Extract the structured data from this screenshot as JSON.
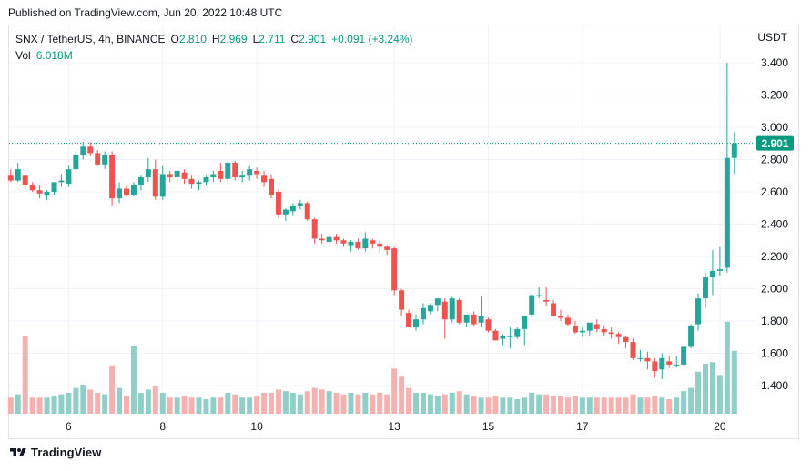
{
  "header": {
    "published": "Published on TradingView.com, Jun 20, 2022 10:48 UTC"
  },
  "legend": {
    "symbol": "SNX / TetherUS, 4h, BINANCE",
    "o_label": "O",
    "o_value": "2.810",
    "h_label": "H",
    "h_value": "2.969",
    "l_label": "L",
    "l_value": "2.711",
    "c_label": "C",
    "c_value": "2.901",
    "change": "+0.091 (+3.24%)",
    "vol_label": "Vol",
    "vol_value": "6.018M"
  },
  "axis": {
    "currency": "USDT"
  },
  "colors": {
    "up": "#26a69a",
    "down": "#ef5350",
    "up_vol": "#8fcfc8",
    "down_vol": "#f5b1af",
    "grid": "#f0f3fa",
    "accent": "#089981"
  },
  "footer": {
    "brand": "TradingView"
  },
  "chart_data": {
    "type": "candlestick",
    "title": "SNX / TetherUS, 4h, BINANCE",
    "ylabel": "USDT",
    "ylim": [
      1.24,
      3.53
    ],
    "y_ticks": [
      "3.400",
      "3.200",
      "3.000",
      "2.800",
      "2.600",
      "2.400",
      "2.200",
      "2.000",
      "1.800",
      "1.600",
      "1.400"
    ],
    "x_ticks": [
      "6",
      "8",
      "10",
      "13",
      "15",
      "17",
      "20"
    ],
    "x_tick_bar_index": [
      8,
      21,
      34,
      53,
      66,
      79,
      98
    ],
    "last_price_label": "2.901",
    "last_price": 2.901,
    "volume_max": 6.2,
    "candles": [
      [
        2.7,
        2.74,
        2.66,
        2.67,
        1.0
      ],
      [
        2.67,
        2.78,
        2.66,
        2.74,
        1.2
      ],
      [
        2.7,
        2.72,
        2.62,
        2.64,
        4.8
      ],
      [
        2.64,
        2.66,
        2.6,
        2.61,
        1.0
      ],
      [
        2.61,
        2.64,
        2.56,
        2.59,
        1.0
      ],
      [
        2.58,
        2.61,
        2.55,
        2.6,
        1.0
      ],
      [
        2.6,
        2.66,
        2.58,
        2.66,
        1.1
      ],
      [
        2.66,
        2.71,
        2.63,
        2.67,
        1.2
      ],
      [
        2.65,
        2.76,
        2.63,
        2.74,
        1.3
      ],
      [
        2.74,
        2.85,
        2.72,
        2.83,
        1.6
      ],
      [
        2.83,
        2.91,
        2.8,
        2.88,
        1.8
      ],
      [
        2.88,
        2.91,
        2.82,
        2.84,
        1.5
      ],
      [
        2.84,
        2.86,
        2.76,
        2.77,
        1.3
      ],
      [
        2.77,
        2.85,
        2.74,
        2.83,
        1.2
      ],
      [
        2.83,
        2.85,
        2.51,
        2.56,
        3.0
      ],
      [
        2.56,
        2.66,
        2.53,
        2.62,
        1.6
      ],
      [
        2.62,
        2.64,
        2.57,
        2.58,
        1.1
      ],
      [
        2.58,
        2.66,
        2.57,
        2.64,
        4.2
      ],
      [
        2.64,
        2.7,
        2.61,
        2.69,
        1.3
      ],
      [
        2.69,
        2.81,
        2.66,
        2.74,
        1.5
      ],
      [
        2.74,
        2.8,
        2.55,
        2.57,
        1.7
      ],
      [
        2.57,
        2.76,
        2.55,
        2.71,
        1.3
      ],
      [
        2.71,
        2.73,
        2.66,
        2.69,
        1.0
      ],
      [
        2.69,
        2.74,
        2.66,
        2.73,
        1.0
      ],
      [
        2.72,
        2.74,
        2.65,
        2.68,
        1.1
      ],
      [
        2.68,
        2.7,
        2.62,
        2.65,
        1.0
      ],
      [
        2.65,
        2.67,
        2.61,
        2.66,
        1.0
      ],
      [
        2.66,
        2.7,
        2.64,
        2.69,
        0.9
      ],
      [
        2.69,
        2.73,
        2.66,
        2.71,
        1.0
      ],
      [
        2.73,
        2.78,
        2.66,
        2.68,
        1.0
      ],
      [
        2.68,
        2.79,
        2.66,
        2.78,
        1.3
      ],
      [
        2.78,
        2.79,
        2.67,
        2.69,
        1.2
      ],
      [
        2.69,
        2.73,
        2.66,
        2.7,
        1.0
      ],
      [
        2.7,
        2.76,
        2.67,
        2.74,
        1.0
      ],
      [
        2.73,
        2.75,
        2.68,
        2.71,
        1.1
      ],
      [
        2.7,
        2.73,
        2.63,
        2.66,
        1.3
      ],
      [
        2.68,
        2.71,
        2.56,
        2.58,
        1.3
      ],
      [
        2.6,
        2.61,
        2.44,
        2.46,
        1.5
      ],
      [
        2.46,
        2.5,
        2.42,
        2.49,
        1.4
      ],
      [
        2.48,
        2.53,
        2.45,
        2.51,
        1.3
      ],
      [
        2.51,
        2.55,
        2.49,
        2.53,
        1.2
      ],
      [
        2.53,
        2.54,
        2.42,
        2.43,
        1.4
      ],
      [
        2.43,
        2.44,
        2.28,
        2.31,
        1.6
      ],
      [
        2.31,
        2.34,
        2.28,
        2.3,
        1.5
      ],
      [
        2.29,
        2.34,
        2.27,
        2.32,
        1.4
      ],
      [
        2.32,
        2.34,
        2.28,
        2.3,
        1.3
      ],
      [
        2.3,
        2.31,
        2.26,
        2.28,
        1.2
      ],
      [
        2.27,
        2.3,
        2.23,
        2.29,
        1.3
      ],
      [
        2.29,
        2.31,
        2.24,
        2.25,
        1.2
      ],
      [
        2.25,
        2.35,
        2.23,
        2.31,
        1.3
      ],
      [
        2.3,
        2.31,
        2.25,
        2.28,
        1.2
      ],
      [
        2.28,
        2.3,
        2.22,
        2.26,
        1.3
      ],
      [
        2.26,
        2.27,
        2.21,
        2.24,
        1.2
      ],
      [
        2.25,
        2.26,
        1.96,
        1.99,
        2.8
      ],
      [
        1.99,
        2.0,
        1.83,
        1.87,
        2.3
      ],
      [
        1.85,
        1.87,
        1.76,
        1.76,
        1.6
      ],
      [
        1.76,
        1.84,
        1.74,
        1.81,
        1.3
      ],
      [
        1.81,
        1.91,
        1.78,
        1.88,
        1.3
      ],
      [
        1.86,
        1.91,
        1.84,
        1.9,
        1.2
      ],
      [
        1.9,
        1.94,
        1.86,
        1.94,
        1.1
      ],
      [
        1.92,
        1.94,
        1.69,
        1.81,
        1.2
      ],
      [
        1.81,
        1.95,
        1.79,
        1.94,
        1.3
      ],
      [
        1.93,
        1.94,
        1.78,
        1.79,
        1.4
      ],
      [
        1.79,
        1.84,
        1.76,
        1.84,
        1.2
      ],
      [
        1.84,
        1.86,
        1.77,
        1.78,
        1.1
      ],
      [
        1.79,
        1.95,
        1.76,
        1.83,
        1.0
      ],
      [
        1.81,
        1.82,
        1.73,
        1.74,
        1.0
      ],
      [
        1.74,
        1.75,
        1.68,
        1.68,
        1.1
      ],
      [
        1.69,
        1.72,
        1.65,
        1.71,
        1.0
      ],
      [
        1.7,
        1.76,
        1.63,
        1.71,
        1.0
      ],
      [
        1.7,
        1.76,
        1.69,
        1.75,
        0.9
      ],
      [
        1.75,
        1.81,
        1.65,
        1.83,
        1.0
      ],
      [
        1.84,
        1.97,
        1.82,
        1.96,
        1.3
      ],
      [
        1.96,
        2.01,
        1.94,
        1.96,
        1.2
      ],
      [
        1.93,
        2.01,
        1.89,
        1.92,
        1.2
      ],
      [
        1.91,
        1.93,
        1.83,
        1.83,
        1.1
      ],
      [
        1.83,
        1.87,
        1.8,
        1.82,
        1.1
      ],
      [
        1.82,
        1.84,
        1.77,
        1.78,
        1.0
      ],
      [
        1.77,
        1.8,
        1.72,
        1.73,
        1.1
      ],
      [
        1.73,
        1.76,
        1.7,
        1.74,
        1.0
      ],
      [
        1.74,
        1.79,
        1.71,
        1.79,
        1.0
      ],
      [
        1.78,
        1.81,
        1.73,
        1.75,
        1.0
      ],
      [
        1.75,
        1.77,
        1.71,
        1.73,
        1.0
      ],
      [
        1.73,
        1.76,
        1.69,
        1.72,
        1.0
      ],
      [
        1.72,
        1.73,
        1.66,
        1.7,
        1.0
      ],
      [
        1.7,
        1.71,
        1.63,
        1.67,
        1.0
      ],
      [
        1.67,
        1.69,
        1.56,
        1.57,
        1.2
      ],
      [
        1.57,
        1.62,
        1.55,
        1.57,
        1.0
      ],
      [
        1.57,
        1.61,
        1.5,
        1.55,
        1.0
      ],
      [
        1.55,
        1.57,
        1.45,
        1.49,
        1.1
      ],
      [
        1.5,
        1.6,
        1.44,
        1.57,
        1.0
      ],
      [
        1.55,
        1.58,
        1.51,
        1.53,
        0.9
      ],
      [
        1.53,
        1.58,
        1.51,
        1.53,
        1.0
      ],
      [
        1.53,
        1.65,
        1.52,
        1.64,
        1.4
      ],
      [
        1.64,
        1.78,
        1.63,
        1.77,
        1.6
      ],
      [
        1.78,
        1.97,
        1.74,
        1.94,
        2.6
      ],
      [
        1.94,
        2.1,
        1.88,
        2.07,
        3.1
      ],
      [
        2.07,
        2.24,
        1.96,
        2.11,
        3.2
      ],
      [
        2.11,
        2.26,
        2.08,
        2.12,
        2.4
      ],
      [
        2.13,
        3.4,
        2.1,
        2.81,
        5.7
      ],
      [
        2.81,
        2.97,
        2.71,
        2.9,
        3.9
      ]
    ]
  }
}
